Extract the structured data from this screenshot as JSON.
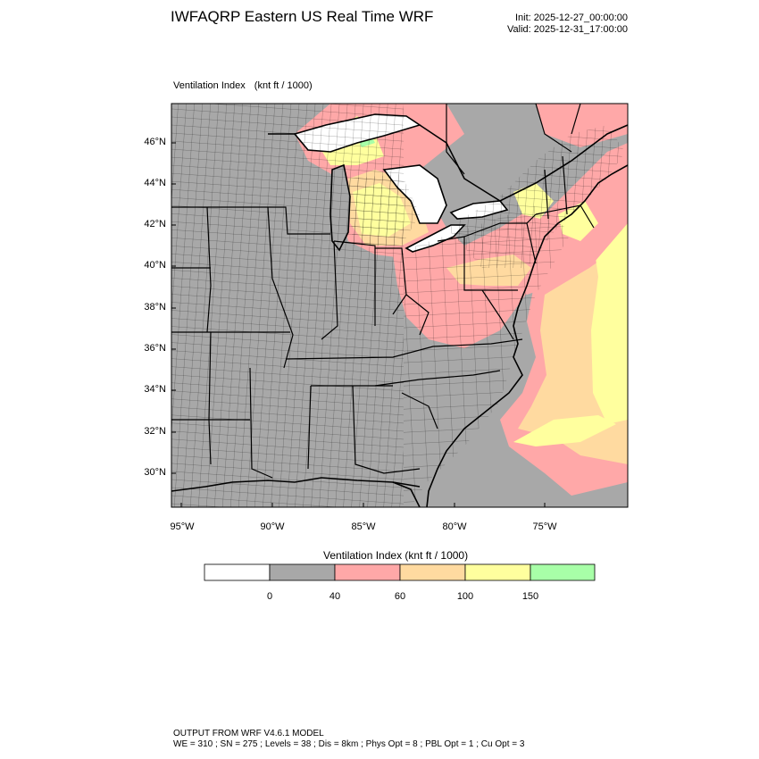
{
  "header": {
    "title": "IWFAQRP Eastern US Real Time WRF",
    "init": "Init: 2025-12-27_00:00:00",
    "valid": "Valid: 2025-12-31_17:00:00"
  },
  "map": {
    "variable": "Ventilation Index",
    "units": "(knt ft / 1000)",
    "lat_labels": [
      "46°N",
      "44°N",
      "42°N",
      "40°N",
      "38°N",
      "36°N",
      "34°N",
      "32°N",
      "30°N"
    ],
    "lon_labels": [
      "95°W",
      "90°W",
      "85°W",
      "80°W",
      "75°W"
    ],
    "colors": {
      "land_low": "#a8a8a8",
      "c40_60": "#ffa8a8",
      "c60_100": "#ffdaa0",
      "c100_150": "#ffff9e",
      "c150_plus": "#a8ffa8",
      "water": "#ffffff"
    }
  },
  "colorbar": {
    "title": "Ventilation Index  (knt ft / 1000)",
    "ticks": [
      "0",
      "40",
      "60",
      "100",
      "150"
    ],
    "colors": [
      "#ffffff",
      "#a8a8a8",
      "#ffa8a8",
      "#ffdaa0",
      "#ffff9e",
      "#a8ffa8"
    ]
  },
  "footer": {
    "line1": "OUTPUT FROM WRF V4.6.1 MODEL",
    "line2": "WE = 310 ; SN = 275 ; Levels = 38 ; Dis = 8km ; Phys Opt = 8 ; PBL Opt = 1 ; Cu Opt = 3"
  }
}
